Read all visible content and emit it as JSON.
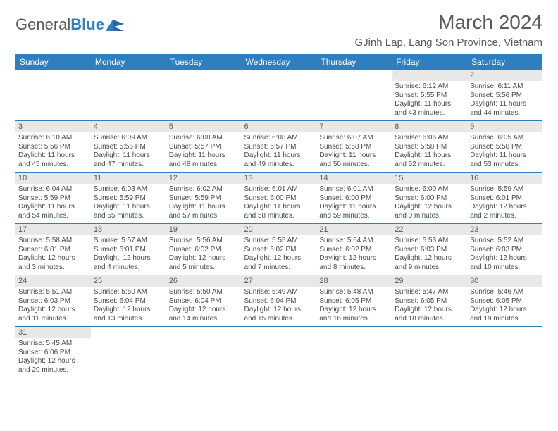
{
  "brand": {
    "part1": "General",
    "part2": "Blue"
  },
  "title": "March 2024",
  "location": "GJinh Lap, Lang Son Province, Vietnam",
  "header_bg": "#2f7ec0",
  "daynum_bg": "#e8e8e8",
  "days": [
    "Sunday",
    "Monday",
    "Tuesday",
    "Wednesday",
    "Thursday",
    "Friday",
    "Saturday"
  ],
  "weeks": [
    [
      null,
      null,
      null,
      null,
      null,
      {
        "n": "1",
        "sr": "Sunrise: 6:12 AM",
        "ss": "Sunset: 5:55 PM",
        "dl1": "Daylight: 11 hours",
        "dl2": "and 43 minutes."
      },
      {
        "n": "2",
        "sr": "Sunrise: 6:11 AM",
        "ss": "Sunset: 5:56 PM",
        "dl1": "Daylight: 11 hours",
        "dl2": "and 44 minutes."
      }
    ],
    [
      {
        "n": "3",
        "sr": "Sunrise: 6:10 AM",
        "ss": "Sunset: 5:56 PM",
        "dl1": "Daylight: 11 hours",
        "dl2": "and 45 minutes."
      },
      {
        "n": "4",
        "sr": "Sunrise: 6:09 AM",
        "ss": "Sunset: 5:56 PM",
        "dl1": "Daylight: 11 hours",
        "dl2": "and 47 minutes."
      },
      {
        "n": "5",
        "sr": "Sunrise: 6:08 AM",
        "ss": "Sunset: 5:57 PM",
        "dl1": "Daylight: 11 hours",
        "dl2": "and 48 minutes."
      },
      {
        "n": "6",
        "sr": "Sunrise: 6:08 AM",
        "ss": "Sunset: 5:57 PM",
        "dl1": "Daylight: 11 hours",
        "dl2": "and 49 minutes."
      },
      {
        "n": "7",
        "sr": "Sunrise: 6:07 AM",
        "ss": "Sunset: 5:58 PM",
        "dl1": "Daylight: 11 hours",
        "dl2": "and 50 minutes."
      },
      {
        "n": "8",
        "sr": "Sunrise: 6:06 AM",
        "ss": "Sunset: 5:58 PM",
        "dl1": "Daylight: 11 hours",
        "dl2": "and 52 minutes."
      },
      {
        "n": "9",
        "sr": "Sunrise: 6:05 AM",
        "ss": "Sunset: 5:58 PM",
        "dl1": "Daylight: 11 hours",
        "dl2": "and 53 minutes."
      }
    ],
    [
      {
        "n": "10",
        "sr": "Sunrise: 6:04 AM",
        "ss": "Sunset: 5:59 PM",
        "dl1": "Daylight: 11 hours",
        "dl2": "and 54 minutes."
      },
      {
        "n": "11",
        "sr": "Sunrise: 6:03 AM",
        "ss": "Sunset: 5:59 PM",
        "dl1": "Daylight: 11 hours",
        "dl2": "and 55 minutes."
      },
      {
        "n": "12",
        "sr": "Sunrise: 6:02 AM",
        "ss": "Sunset: 5:59 PM",
        "dl1": "Daylight: 11 hours",
        "dl2": "and 57 minutes."
      },
      {
        "n": "13",
        "sr": "Sunrise: 6:01 AM",
        "ss": "Sunset: 6:00 PM",
        "dl1": "Daylight: 11 hours",
        "dl2": "and 58 minutes."
      },
      {
        "n": "14",
        "sr": "Sunrise: 6:01 AM",
        "ss": "Sunset: 6:00 PM",
        "dl1": "Daylight: 11 hours",
        "dl2": "and 59 minutes."
      },
      {
        "n": "15",
        "sr": "Sunrise: 6:00 AM",
        "ss": "Sunset: 6:00 PM",
        "dl1": "Daylight: 12 hours",
        "dl2": "and 0 minutes."
      },
      {
        "n": "16",
        "sr": "Sunrise: 5:59 AM",
        "ss": "Sunset: 6:01 PM",
        "dl1": "Daylight: 12 hours",
        "dl2": "and 2 minutes."
      }
    ],
    [
      {
        "n": "17",
        "sr": "Sunrise: 5:58 AM",
        "ss": "Sunset: 6:01 PM",
        "dl1": "Daylight: 12 hours",
        "dl2": "and 3 minutes."
      },
      {
        "n": "18",
        "sr": "Sunrise: 5:57 AM",
        "ss": "Sunset: 6:01 PM",
        "dl1": "Daylight: 12 hours",
        "dl2": "and 4 minutes."
      },
      {
        "n": "19",
        "sr": "Sunrise: 5:56 AM",
        "ss": "Sunset: 6:02 PM",
        "dl1": "Daylight: 12 hours",
        "dl2": "and 5 minutes."
      },
      {
        "n": "20",
        "sr": "Sunrise: 5:55 AM",
        "ss": "Sunset: 6:02 PM",
        "dl1": "Daylight: 12 hours",
        "dl2": "and 7 minutes."
      },
      {
        "n": "21",
        "sr": "Sunrise: 5:54 AM",
        "ss": "Sunset: 6:02 PM",
        "dl1": "Daylight: 12 hours",
        "dl2": "and 8 minutes."
      },
      {
        "n": "22",
        "sr": "Sunrise: 5:53 AM",
        "ss": "Sunset: 6:03 PM",
        "dl1": "Daylight: 12 hours",
        "dl2": "and 9 minutes."
      },
      {
        "n": "23",
        "sr": "Sunrise: 5:52 AM",
        "ss": "Sunset: 6:03 PM",
        "dl1": "Daylight: 12 hours",
        "dl2": "and 10 minutes."
      }
    ],
    [
      {
        "n": "24",
        "sr": "Sunrise: 5:51 AM",
        "ss": "Sunset: 6:03 PM",
        "dl1": "Daylight: 12 hours",
        "dl2": "and 11 minutes."
      },
      {
        "n": "25",
        "sr": "Sunrise: 5:50 AM",
        "ss": "Sunset: 6:04 PM",
        "dl1": "Daylight: 12 hours",
        "dl2": "and 13 minutes."
      },
      {
        "n": "26",
        "sr": "Sunrise: 5:50 AM",
        "ss": "Sunset: 6:04 PM",
        "dl1": "Daylight: 12 hours",
        "dl2": "and 14 minutes."
      },
      {
        "n": "27",
        "sr": "Sunrise: 5:49 AM",
        "ss": "Sunset: 6:04 PM",
        "dl1": "Daylight: 12 hours",
        "dl2": "and 15 minutes."
      },
      {
        "n": "28",
        "sr": "Sunrise: 5:48 AM",
        "ss": "Sunset: 6:05 PM",
        "dl1": "Daylight: 12 hours",
        "dl2": "and 16 minutes."
      },
      {
        "n": "29",
        "sr": "Sunrise: 5:47 AM",
        "ss": "Sunset: 6:05 PM",
        "dl1": "Daylight: 12 hours",
        "dl2": "and 18 minutes."
      },
      {
        "n": "30",
        "sr": "Sunrise: 5:46 AM",
        "ss": "Sunset: 6:05 PM",
        "dl1": "Daylight: 12 hours",
        "dl2": "and 19 minutes."
      }
    ],
    [
      {
        "n": "31",
        "sr": "Sunrise: 5:45 AM",
        "ss": "Sunset: 6:06 PM",
        "dl1": "Daylight: 12 hours",
        "dl2": "and 20 minutes."
      },
      null,
      null,
      null,
      null,
      null,
      null
    ]
  ]
}
